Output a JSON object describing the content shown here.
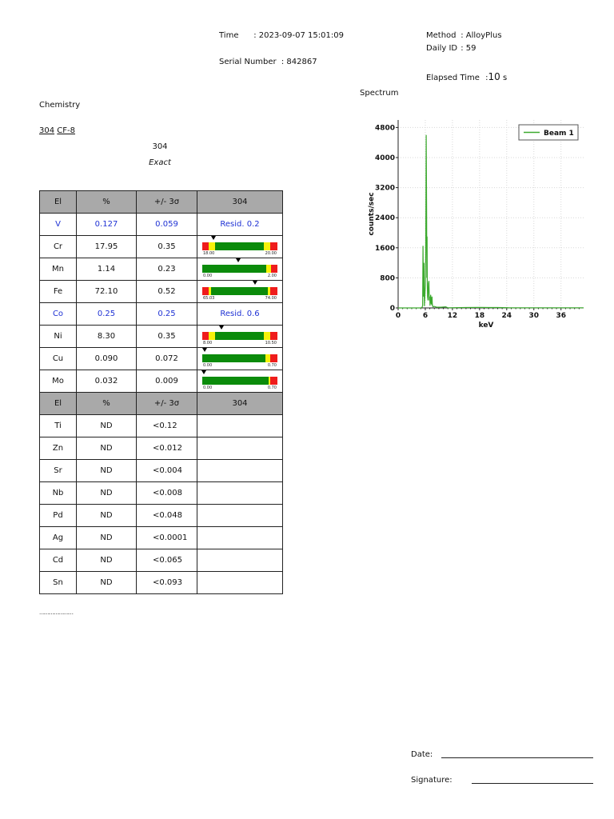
{
  "header": {
    "time_label": "Time",
    "time_value": ": 2023-09-07  15:01:09",
    "serial_label": "Serial Number",
    "serial_value": ": 842867",
    "method_label": "Method",
    "method_value": ": AlloyPlus",
    "daily_label": "Daily ID",
    "daily_value": ": 59",
    "elapsed_label": "Elapsed Time",
    "elapsed_value_prefix": ":",
    "elapsed_value": "10",
    "elapsed_unit": "s"
  },
  "chemistry": {
    "title": "Chemistry",
    "match_primary": "304",
    "match_secondary": "CF-8",
    "grade": "304",
    "match_quality": "Exact"
  },
  "table": {
    "headers": [
      "El",
      "%",
      "+/- 3σ",
      "304"
    ],
    "rows": [
      {
        "el": "V",
        "pct": "0.127",
        "err": "0.059",
        "result": "Resid. 0.2",
        "blue": true
      },
      {
        "el": "Cr",
        "pct": "17.95",
        "err": "0.35",
        "gauge": {
          "lo": "18.00",
          "hi": "20.00",
          "marker": 0.15,
          "left_red": 0.09,
          "left_yellow": 0.08,
          "right_yellow": 0.08,
          "right_red": 0.1
        }
      },
      {
        "el": "Mn",
        "pct": "1.14",
        "err": "0.23",
        "gauge": {
          "lo": "0.00",
          "hi": "2.00",
          "marker": 0.48,
          "left_red": 0,
          "left_yellow": 0,
          "right_yellow": 0.06,
          "right_red": 0.09
        }
      },
      {
        "el": "Fe",
        "pct": "72.10",
        "err": "0.52",
        "gauge": {
          "lo": "65.03",
          "hi": "74.00",
          "marker": 0.7,
          "left_red": 0.09,
          "left_yellow": 0.03,
          "right_yellow": 0.03,
          "right_red": 0.1
        }
      },
      {
        "el": "Co",
        "pct": "0.25",
        "err": "0.25",
        "result": "Resid. 0.6",
        "blue": true
      },
      {
        "el": "Ni",
        "pct": "8.30",
        "err": "0.35",
        "gauge": {
          "lo": "8.00",
          "hi": "10.50",
          "marker": 0.25,
          "left_red": 0.09,
          "left_yellow": 0.08,
          "right_yellow": 0.08,
          "right_red": 0.1
        }
      },
      {
        "el": "Cu",
        "pct": "0.090",
        "err": "0.072",
        "gauge": {
          "lo": "0.00",
          "hi": "0.70",
          "marker": 0.03,
          "left_red": 0,
          "left_yellow": 0,
          "right_yellow": 0.06,
          "right_red": 0.1
        }
      },
      {
        "el": "Mo",
        "pct": "0.032",
        "err": "0.009",
        "gauge": {
          "lo": "0.00",
          "hi": "0.70",
          "marker": 0.02,
          "left_red": 0,
          "left_yellow": 0,
          "right_yellow": 0.02,
          "right_red": 0.1
        }
      }
    ],
    "headers2": [
      "El",
      "%",
      "+/- 3σ",
      "304"
    ],
    "nd_rows": [
      {
        "el": "Ti",
        "pct": "ND",
        "err": "<0.12"
      },
      {
        "el": "Zn",
        "pct": "ND",
        "err": "<0.012"
      },
      {
        "el": "Sr",
        "pct": "ND",
        "err": "<0.004"
      },
      {
        "el": "Nb",
        "pct": "ND",
        "err": "<0.008"
      },
      {
        "el": "Pd",
        "pct": "ND",
        "err": "<0.048"
      },
      {
        "el": "Ag",
        "pct": "ND",
        "err": "<0.0001"
      },
      {
        "el": "Cd",
        "pct": "ND",
        "err": "<0.065"
      },
      {
        "el": "Sn",
        "pct": "ND",
        "err": "<0.093"
      }
    ],
    "footer_dots": "…………………"
  },
  "spectrum_title": "Spectrum",
  "chart_data": {
    "type": "line",
    "xlabel": "keV",
    "ylabel": "counts/sec",
    "xlim": [
      0,
      41
    ],
    "ylim": [
      0,
      5000
    ],
    "x_ticks": [
      0,
      6,
      12,
      18,
      24,
      30,
      36
    ],
    "y_ticks": [
      0,
      800,
      1600,
      2400,
      3200,
      4000,
      4800
    ],
    "grid": true,
    "legend_position": "top-right",
    "series": [
      {
        "name": "Beam 1",
        "color": "#3caa2e",
        "x": [
          0,
          5.0,
          5.3,
          5.4,
          5.5,
          5.6,
          5.7,
          5.8,
          5.9,
          6.0,
          6.1,
          6.2,
          6.3,
          6.35,
          6.4,
          6.45,
          6.5,
          6.55,
          6.6,
          6.7,
          6.8,
          6.9,
          7.0,
          7.05,
          7.1,
          7.2,
          7.3,
          7.4,
          7.45,
          7.5,
          7.55,
          7.6,
          7.7,
          8.0,
          8.5,
          9.5,
          10.5,
          11.0,
          15.0,
          18.0,
          20.0,
          22.0,
          24.5,
          27.0,
          30.0,
          35.0,
          38.0,
          41.0
        ],
        "y": [
          0,
          0,
          20,
          60,
          1650,
          300,
          1200,
          50,
          300,
          600,
          1500,
          4600,
          2600,
          800,
          1900,
          600,
          300,
          250,
          200,
          650,
          720,
          200,
          300,
          60,
          220,
          350,
          120,
          100,
          280,
          300,
          120,
          60,
          30,
          40,
          20,
          20,
          30,
          5,
          10,
          15,
          10,
          10,
          5,
          5,
          5,
          5,
          5,
          5
        ]
      }
    ]
  },
  "footer": {
    "date_label": "Date:",
    "signature_label": "Signature:"
  },
  "colors": {
    "gauge_red": "#ef1c1c",
    "gauge_yellow": "#f6f20b",
    "gauge_green": "#0b8b0b",
    "blue_text": "#1f32d4",
    "header_gray": "#a9a9a9"
  }
}
